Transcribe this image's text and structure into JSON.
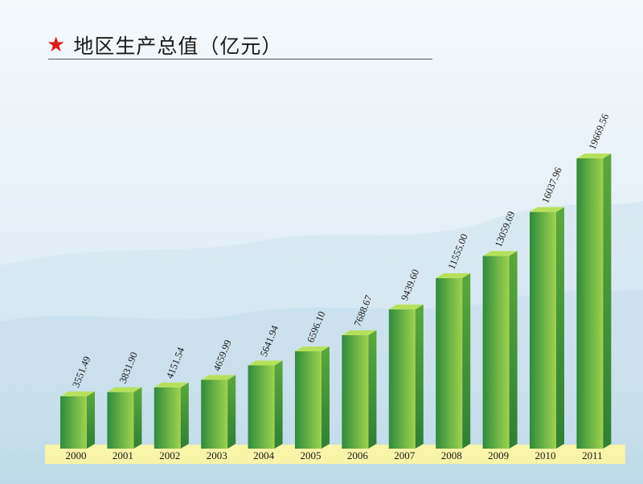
{
  "header": {
    "icon": "star-icon",
    "title": "地区生产总值（亿元）"
  },
  "colors": {
    "star": "#d81e1e",
    "bar_front_dark": "#2f8a3c",
    "bar_front_light": "#9fd24e",
    "bar_side": "#3b8f36",
    "bar_top": "#b7e05a",
    "axis_band": "#f8f4a8"
  },
  "chart_data": {
    "type": "bar",
    "title": "地区生产总值（亿元）",
    "xlabel": "",
    "ylabel": "",
    "categories": [
      "2000",
      "2001",
      "2002",
      "2003",
      "2004",
      "2005",
      "2006",
      "2007",
      "2008",
      "2009",
      "2010",
      "2011"
    ],
    "values": [
      3551.49,
      3831.9,
      4151.54,
      4659.99,
      5641.94,
      6596.1,
      7688.67,
      9439.6,
      11555.0,
      13059.69,
      16037.96,
      19669.56
    ],
    "value_labels": [
      "3551.49",
      "3831.90",
      "4151.54",
      "4659.99",
      "5641.94",
      "6596.10",
      "7688.67",
      "9439.60",
      "11555.00",
      "13059.69",
      "16037.96",
      "19669.56"
    ],
    "ylim": [
      0,
      20000
    ],
    "grid": false,
    "legend": "none"
  }
}
